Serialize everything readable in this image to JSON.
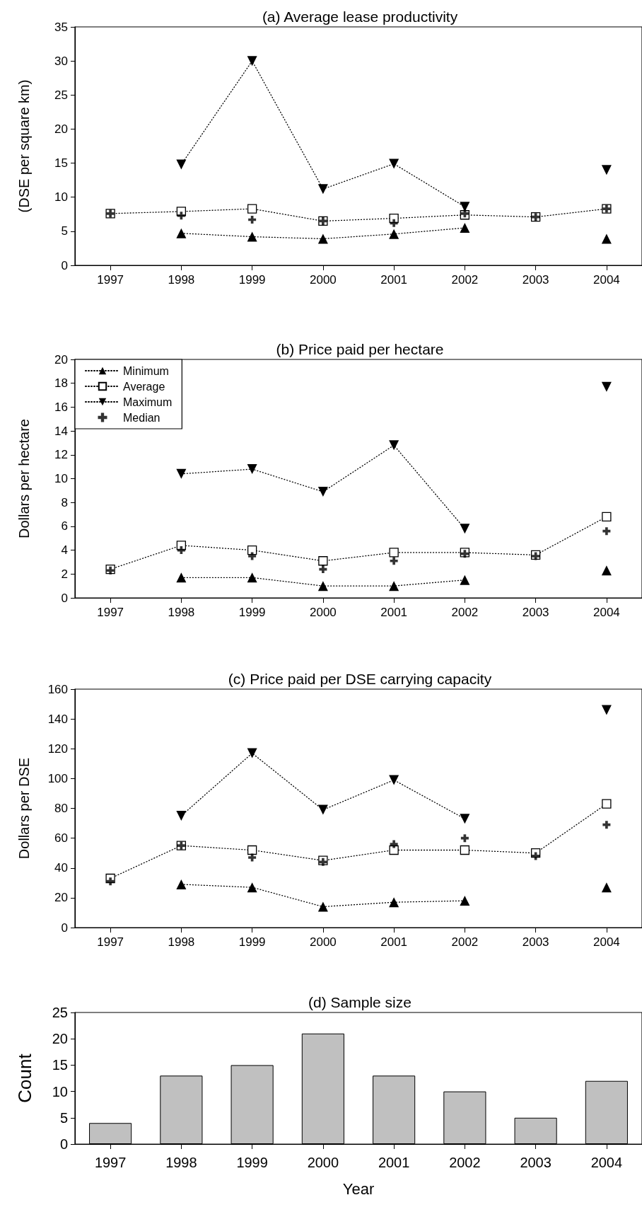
{
  "chart_data": [
    {
      "type": "line",
      "title": "(a) Average lease productivity",
      "ylabel": "(DSE per square km)",
      "categories": [
        "1997",
        "1998",
        "1999",
        "2000",
        "2001",
        "2002",
        "2003",
        "2004"
      ],
      "ylim": [
        0,
        35
      ],
      "yticks": [
        0,
        5,
        10,
        15,
        20,
        25,
        30,
        35
      ],
      "grid": false,
      "legend": false,
      "line_style": "dotted",
      "series": [
        {
          "color": "#000000",
          "marker": "triangle",
          "values": [
            null,
            4.7,
            4.2,
            3.9,
            4.6,
            5.5,
            null,
            3.9
          ]
        },
        {
          "color": "#000000",
          "marker": "square",
          "values": [
            7.6,
            7.9,
            8.3,
            6.5,
            6.9,
            7.4,
            7.1,
            8.3
          ]
        },
        {
          "color": "#000000",
          "marker": "triangle-down",
          "values": [
            null,
            14.8,
            30.0,
            11.2,
            14.9,
            8.6,
            null,
            14.0
          ]
        },
        {
          "type": "scatter",
          "color": "#000000",
          "marker": "cross",
          "values": [
            7.6,
            7.3,
            6.7,
            6.5,
            6.2,
            7.6,
            7.1,
            8.3
          ]
        }
      ]
    },
    {
      "type": "line",
      "title": "(b) Price paid per hectare",
      "ylabel": "Dollars per hectare",
      "categories": [
        "1997",
        "1998",
        "1999",
        "2000",
        "2001",
        "2002",
        "2003",
        "2004"
      ],
      "ylim": [
        0,
        20
      ],
      "yticks": [
        0,
        2,
        4,
        6,
        8,
        10,
        12,
        14,
        16,
        18,
        20
      ],
      "grid": false,
      "legend": "top left",
      "line_style": "dotted",
      "series": [
        {
          "name": "Minimum",
          "color": "#000000",
          "marker": "triangle",
          "values": [
            null,
            1.7,
            1.7,
            1.0,
            1.0,
            1.5,
            null,
            2.3
          ]
        },
        {
          "name": "Average",
          "color": "#000000",
          "marker": "square",
          "values": [
            2.4,
            4.4,
            4.0,
            3.1,
            3.8,
            3.8,
            3.6,
            6.8
          ]
        },
        {
          "name": "Maximum",
          "color": "#000000",
          "marker": "triangle-down",
          "values": [
            null,
            10.4,
            10.8,
            8.9,
            12.8,
            5.8,
            null,
            17.7
          ]
        },
        {
          "name": "Median",
          "type": "scatter",
          "color": "#000000",
          "marker": "cross",
          "values": [
            2.3,
            4.0,
            3.5,
            2.4,
            3.1,
            3.7,
            3.5,
            5.6
          ]
        }
      ]
    },
    {
      "type": "line",
      "title": "(c) Price paid per DSE carrying capacity",
      "ylabel": "Dollars per DSE",
      "categories": [
        "1997",
        "1998",
        "1999",
        "2000",
        "2001",
        "2002",
        "2003",
        "2004"
      ],
      "ylim": [
        0,
        160
      ],
      "yticks": [
        0,
        20,
        40,
        60,
        80,
        100,
        120,
        140,
        160
      ],
      "grid": false,
      "legend": false,
      "line_style": "dotted",
      "series": [
        {
          "color": "#000000",
          "marker": "triangle",
          "values": [
            null,
            29,
            27,
            14,
            17,
            18,
            null,
            27
          ]
        },
        {
          "color": "#000000",
          "marker": "square",
          "values": [
            33,
            55,
            52,
            45,
            52,
            52,
            50,
            83
          ]
        },
        {
          "color": "#000000",
          "marker": "triangle-down",
          "values": [
            null,
            75,
            117,
            79,
            99,
            73,
            null,
            146
          ]
        },
        {
          "type": "scatter",
          "color": "#000000",
          "marker": "cross",
          "values": [
            31,
            55,
            47,
            44,
            56,
            60,
            48,
            69
          ]
        }
      ]
    },
    {
      "type": "bar",
      "title": "(d) Sample size",
      "xlabel": "Year",
      "ylabel": "Count",
      "categories": [
        "1997",
        "1998",
        "1999",
        "2000",
        "2001",
        "2002",
        "2003",
        "2004"
      ],
      "ylim": [
        0,
        25
      ],
      "yticks": [
        0,
        5,
        10,
        15,
        20,
        25
      ],
      "grid": false,
      "legend": false,
      "series": [
        {
          "color": "#c0c0c0",
          "values": [
            4,
            13,
            15,
            21,
            13,
            10,
            5,
            12
          ]
        }
      ]
    }
  ]
}
